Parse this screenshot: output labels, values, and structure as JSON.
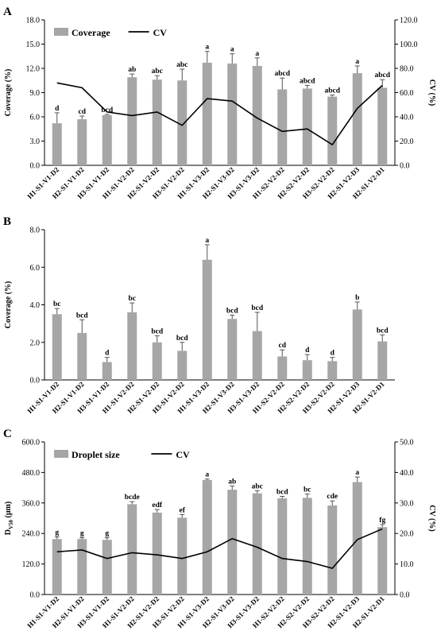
{
  "chart_data": [
    {
      "panel": "A",
      "type": "bar",
      "categories": [
        "H1-S1-V1-D2",
        "H2-S1-V1-D2",
        "H3-S1-V1-D2",
        "H1-S1-V2-D2",
        "H2-S1-V2-D2",
        "H3-S1-V2-D2",
        "H1-S1-V3-D2",
        "H2-S1-V3-D2",
        "H3-S1-V3-D2",
        "H1-S2-V2-D2",
        "H2-S2-V2-D2",
        "H3-S2-V2-D2",
        "H2-S1-V2-D3",
        "H2-S1-V2-D1"
      ],
      "series": [
        {
          "name": "Coverage",
          "kind": "bar",
          "axis": "left",
          "values": [
            5.2,
            5.7,
            6.2,
            10.9,
            10.6,
            10.5,
            12.7,
            12.6,
            12.3,
            9.4,
            9.5,
            8.5,
            11.4,
            9.6
          ],
          "errors": [
            1.3,
            0.4,
            0.1,
            0.4,
            0.5,
            1.4,
            1.4,
            1.2,
            1.0,
            1.4,
            0.4,
            0.2,
            0.9,
            1.0
          ],
          "labels": [
            "d",
            "cd",
            "bcd",
            "ab",
            "abc",
            "abc",
            "a",
            "a",
            "a",
            "abcd",
            "abcd",
            "abcd",
            "a",
            "abcd"
          ]
        },
        {
          "name": "CV",
          "kind": "line",
          "axis": "right",
          "values": [
            68,
            64,
            44,
            41,
            44,
            33,
            55,
            53,
            39,
            28,
            30,
            17,
            47,
            66
          ]
        }
      ],
      "ylabel": "Coverage (%)",
      "y2label": "CV (%)",
      "ylim": [
        0,
        18
      ],
      "yticks": [
        "0.0",
        "3.0",
        "6.0",
        "9.0",
        "12.0",
        "15.0",
        "18.0"
      ],
      "y2lim": [
        0,
        120
      ],
      "y2ticks": [
        "0.0",
        "20.0",
        "40.0",
        "60.0",
        "80.0",
        "100.0",
        "120.0"
      ],
      "legend": "top-left",
      "bar_color": "#a6a6a6"
    },
    {
      "panel": "B",
      "type": "bar",
      "categories": [
        "H1-S1-V1-D2",
        "H2-S1-V1-D2",
        "H3-S1-V1-D2",
        "H1-S1-V2-D2",
        "H2-S1-V2-D2",
        "H3-S1-V2-D2",
        "H1-S1-V3-D2",
        "H2-S1-V3-D2",
        "H3-S1-V3-D2",
        "H1-S2-V2-D2",
        "H2-S2-V2-D2",
        "H3-S2-V2-D2",
        "H2-S1-V2-D3",
        "H2-S1-V2-D1"
      ],
      "series": [
        {
          "kind": "bar",
          "axis": "left",
          "values": [
            3.5,
            2.5,
            0.95,
            3.6,
            2.0,
            1.55,
            6.4,
            3.25,
            2.6,
            1.25,
            1.05,
            1.0,
            3.75,
            2.05
          ],
          "errors": [
            0.3,
            0.7,
            0.25,
            0.5,
            0.35,
            0.45,
            0.8,
            0.2,
            1.0,
            0.35,
            0.3,
            0.2,
            0.4,
            0.35
          ],
          "labels": [
            "bc",
            "bcd",
            "d",
            "bc",
            "bcd",
            "bcd",
            "a",
            "bcd",
            "bcd",
            "cd",
            "d",
            "d",
            "b",
            "bcd"
          ]
        }
      ],
      "ylabel": "Coverage (%)",
      "ylim": [
        0,
        8
      ],
      "yticks": [
        "0.0",
        "2.0",
        "4.0",
        "6.0",
        "8.0"
      ],
      "bar_color": "#a6a6a6"
    },
    {
      "panel": "C",
      "type": "bar",
      "categories": [
        "H1-S1-V1-D2",
        "H2-S1-V1-D2",
        "H3-S1-V1-D2",
        "H1-S1-V2-D2",
        "H2-S1-V2-D2",
        "H3-S1-V2-D2",
        "H1-S1-V3-D2",
        "H2-S1-V3-D2",
        "H3-S1-V3-D2",
        "H1-S2-V2-D2",
        "H2-S2-V2-D2",
        "H3-S2-V2-D2",
        "H2-S1-V2-D3",
        "H2-S1-V2-D1"
      ],
      "series": [
        {
          "name": "Droplet size",
          "kind": "bar",
          "axis": "left",
          "values": [
            218,
            218,
            215,
            355,
            322,
            302,
            450,
            412,
            398,
            378,
            380,
            350,
            442,
            265
          ],
          "errors": [
            8,
            5,
            8,
            10,
            12,
            12,
            4,
            15,
            10,
            8,
            15,
            18,
            20,
            10
          ],
          "labels": [
            "g",
            "g",
            "g",
            "bcde",
            "edf",
            "ef",
            "a",
            "ab",
            "abc",
            "bcd",
            "bc",
            "cde",
            "a",
            "fg"
          ]
        },
        {
          "name": "CV",
          "kind": "line",
          "axis": "right",
          "values": [
            14,
            14.6,
            11.8,
            13.7,
            13,
            11.8,
            14,
            18.3,
            15.5,
            11.8,
            10.8,
            8.6,
            18,
            21.5
          ]
        }
      ],
      "ylabel_main": "D",
      "ylabel_sub": "V50",
      "ylabel_unit": " (μm)",
      "y2label": "CV (%)",
      "ylim": [
        0,
        600
      ],
      "yticks": [
        "0.0",
        "120.0",
        "240.0",
        "360.0",
        "480.0",
        "600.0"
      ],
      "y2lim": [
        0,
        50
      ],
      "y2ticks": [
        "0.0",
        "10.0",
        "20.0",
        "30.0",
        "40.0",
        "50.0"
      ],
      "legend": "top-left",
      "bar_color": "#a6a6a6"
    }
  ]
}
